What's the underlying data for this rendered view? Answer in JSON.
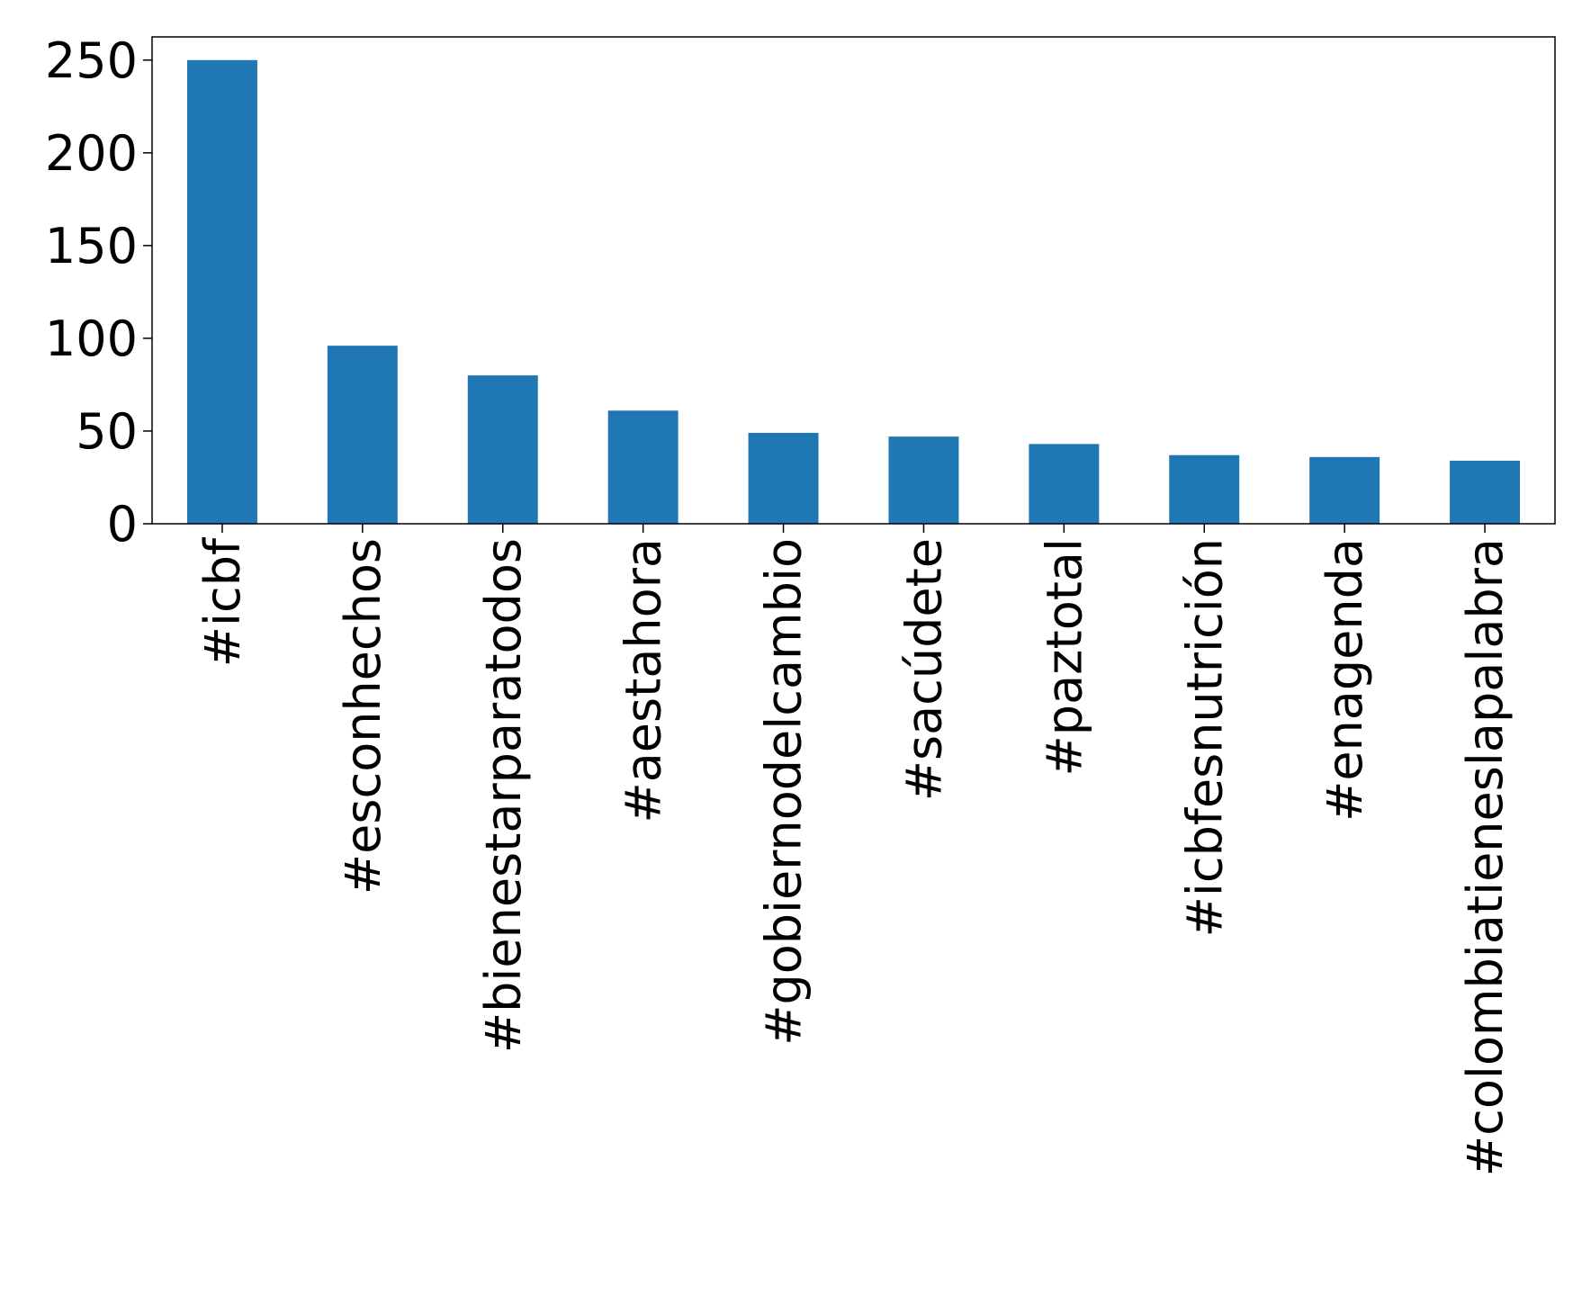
{
  "chart_data": {
    "type": "bar",
    "categories": [
      "#icbf",
      "#esconhechos",
      "#bienestarparatodos",
      "#aestahora",
      "#gobiernodelcambio",
      "#sacúdete",
      "#paztotal",
      "#icbfesnutrición",
      "#enagenda",
      "#colombiatieneslapalabra"
    ],
    "values": [
      250,
      96,
      80,
      61,
      49,
      47,
      43,
      37,
      36,
      34
    ],
    "color": "#1f77b4",
    "ylim": [
      0,
      262.5
    ],
    "yticks": [
      0,
      50,
      100,
      150,
      200,
      250
    ],
    "grid": false
  }
}
